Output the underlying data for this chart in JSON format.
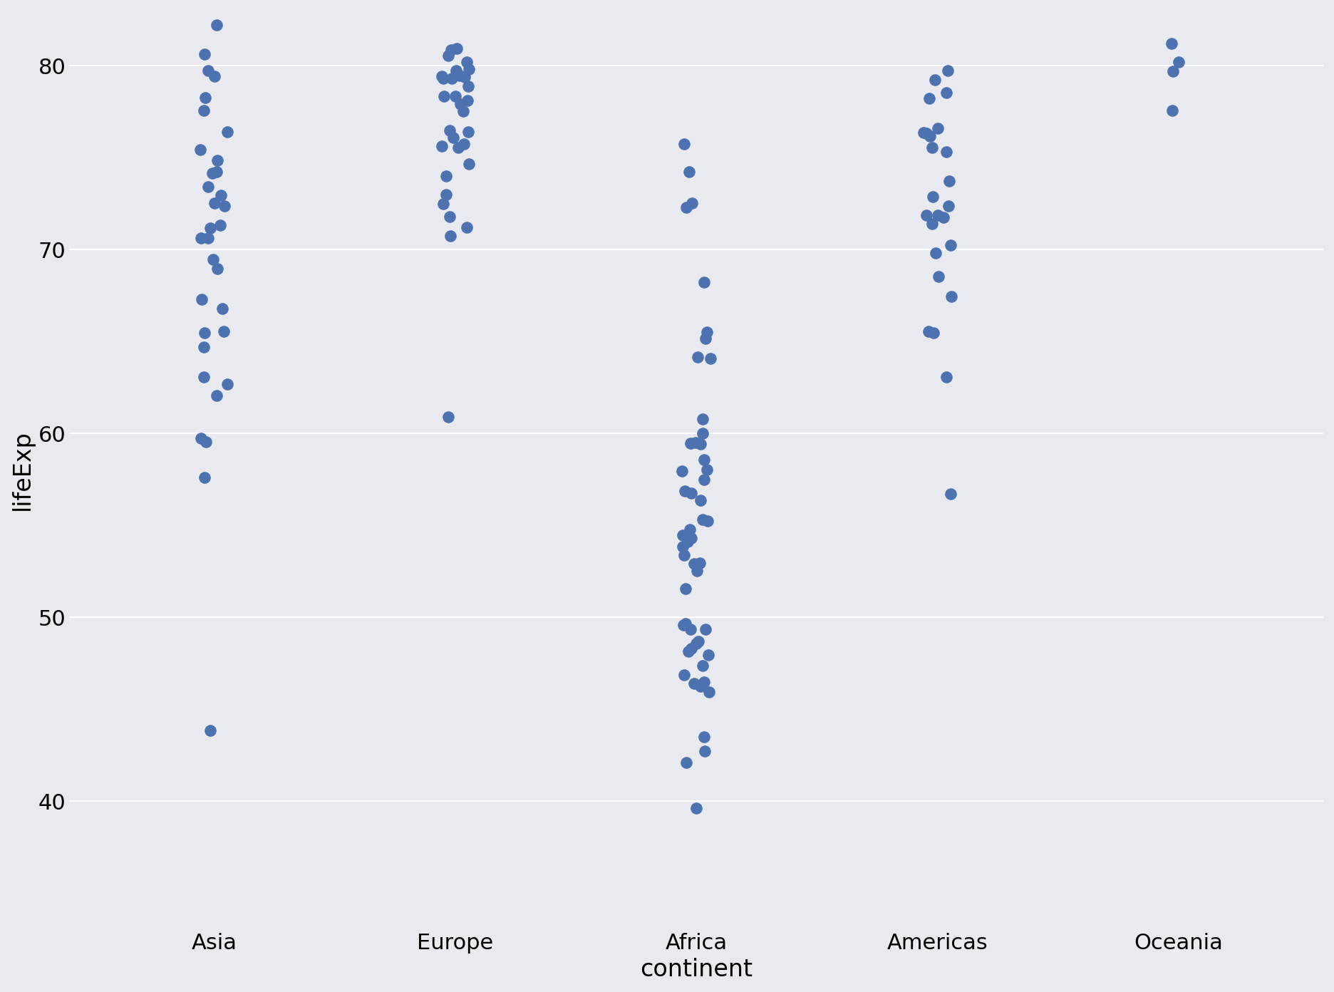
{
  "continents": [
    "Asia",
    "Europe",
    "Africa",
    "Americas",
    "Oceania"
  ],
  "x_positions": [
    1,
    2,
    3,
    4,
    5
  ],
  "data": {
    "Asia": [
      43.828,
      76.423,
      72.961,
      82.208,
      64.698,
      63.062,
      59.723,
      72.39,
      74.241,
      71.338,
      75.442,
      62.698,
      65.554,
      59.545,
      80.653,
      57.593,
      79.762,
      72.535,
      74.143,
      73.422,
      68.978,
      77.588,
      70.616,
      71.164,
      69.451,
      66.803,
      78.273,
      79.425,
      62.069,
      70.651,
      74.852,
      65.483,
      67.297
    ],
    "Europe": [
      76.423,
      79.829,
      75.748,
      76.486,
      79.313,
      77.926,
      76.11,
      78.332,
      78.332,
      79.441,
      80.196,
      80.546,
      79.483,
      71.777,
      79.762,
      80.941,
      73.005,
      74.663,
      77.552,
      78.885,
      71.218,
      75.563,
      78.098,
      72.476,
      74.002,
      75.651,
      70.734,
      79.3,
      60.916,
      79.406,
      80.884
    ],
    "Africa": [
      54.791,
      64.164,
      72.301,
      42.731,
      75.748,
      64.062,
      46.462,
      54.11,
      57.936,
      49.339,
      47.36,
      55.322,
      68.225,
      46.859,
      72.535,
      49.651,
      58.04,
      52.947,
      56.735,
      49.58,
      59.448,
      48.303,
      60.022,
      59.443,
      55.24,
      59.519,
      51.542,
      60.765,
      57.469,
      48.697,
      58.556,
      39.613,
      52.517,
      46.388,
      54.467,
      56.867,
      53.828,
      56.369,
      54.314,
      48.576,
      47.949,
      74.241,
      52.906,
      43.487,
      48.158,
      53.365,
      49.339,
      42.082,
      45.936,
      65.152,
      46.242,
      65.528
    ],
    "Americas": [
      75.32,
      65.554,
      72.39,
      68.551,
      78.553,
      73.747,
      71.421,
      71.891,
      76.195,
      69.819,
      63.062,
      79.762,
      76.384,
      76.605,
      79.241,
      78.242,
      76.323,
      72.889,
      70.259,
      75.537,
      71.878,
      71.752,
      65.483,
      67.456,
      56.695
    ],
    "Oceania": [
      81.235,
      80.204,
      79.696,
      77.558
    ]
  },
  "jitter_seed": 42,
  "dot_color": "#4c72b0",
  "dot_size": 120,
  "background_color": "#e8eaf0",
  "grid_color": "#ffffff",
  "ylabel": "lifeExp",
  "xlabel": "continent",
  "ylim": [
    33,
    83
  ],
  "yticks": [
    40,
    50,
    60,
    70,
    80
  ],
  "figsize": [
    18.72,
    13.92
  ],
  "dpi": 100,
  "jitter_amount": 0.06,
  "tick_fontsize": 22,
  "label_fontsize": 24
}
